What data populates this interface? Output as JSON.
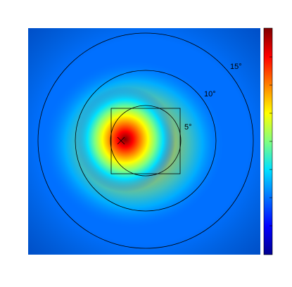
{
  "chart_data": {
    "type": "heatmap",
    "annotations": [
      "5°",
      "10°",
      "15°"
    ],
    "colormap": [
      "#00008f",
      "#0000ff",
      "#0070ff",
      "#00e0ff",
      "#80ff80",
      "#ffff00",
      "#ff8000",
      "#ff0000",
      "#800000"
    ]
  }
}
